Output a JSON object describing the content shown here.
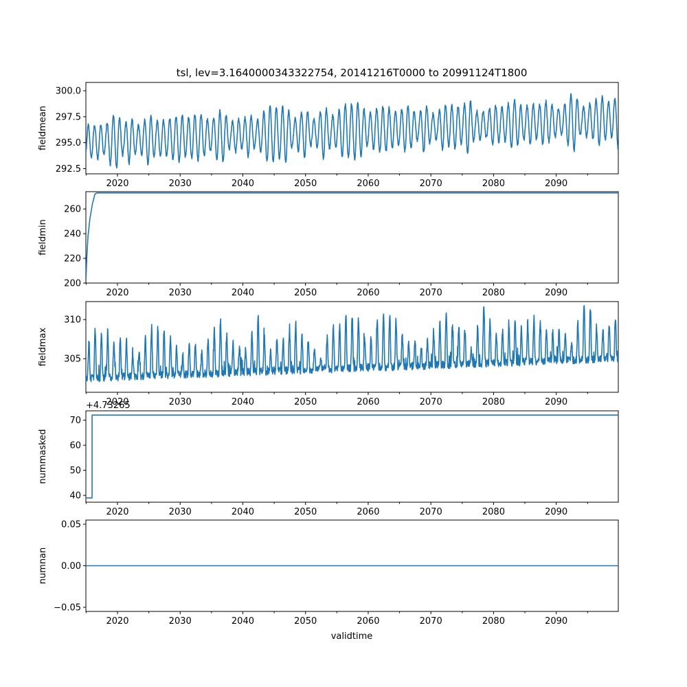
{
  "figure": {
    "title": "tsl, lev=3.1640000343322754, 20141216T0000 to 20991124T1800",
    "xlabel": "validtime",
    "line_color": "#1f77b4"
  },
  "chart_data": [
    {
      "type": "line",
      "name": "fieldmean",
      "ylabel": "fieldmean",
      "xlim": [
        2014.96,
        2099.9
      ],
      "ylim": [
        292.0,
        300.8
      ],
      "x_ticks": [
        2020,
        2030,
        2040,
        2050,
        2060,
        2070,
        2080,
        2090
      ],
      "y_ticks": [
        292.5,
        295.0,
        297.5,
        300.0
      ],
      "y_tick_labels": [
        "292.5",
        "295.0",
        "297.5",
        "300.0"
      ],
      "offset_text": "",
      "model": "seasonal",
      "base": 295.1,
      "trend_per_decade": 0.25,
      "amplitude": 2.0,
      "amplitude_jitter": 0.9,
      "seed": 11
    },
    {
      "type": "line",
      "name": "fieldmin",
      "ylabel": "fieldmin",
      "xlim": [
        2014.96,
        2099.9
      ],
      "ylim": [
        200,
        274
      ],
      "x_ticks": [
        2020,
        2030,
        2040,
        2050,
        2060,
        2070,
        2080,
        2090
      ],
      "y_ticks": [
        200,
        220,
        240,
        260
      ],
      "y_tick_labels": [
        "200",
        "220",
        "240",
        "260"
      ],
      "offset_text": "",
      "model": "ramp",
      "points": [
        [
          2014.96,
          201
        ],
        [
          2015.1,
          220
        ],
        [
          2015.3,
          238
        ],
        [
          2015.6,
          252
        ],
        [
          2016.0,
          264
        ],
        [
          2016.4,
          272
        ],
        [
          2016.7,
          273
        ],
        [
          2099.9,
          273
        ]
      ]
    },
    {
      "type": "line",
      "name": "fieldmax",
      "ylabel": "fieldmax",
      "xlim": [
        2014.96,
        2099.9
      ],
      "ylim": [
        300.7,
        312.3
      ],
      "x_ticks": [
        2020,
        2030,
        2040,
        2050,
        2060,
        2070,
        2080,
        2090
      ],
      "y_ticks": [
        305,
        310
      ],
      "y_tick_labels": [
        "305",
        "310"
      ],
      "offset_text": "",
      "model": "spiky",
      "base": 302.5,
      "trend_per_decade": 0.3,
      "amplitude": 4.5,
      "amplitude_jitter": 3.0,
      "seed": 29
    },
    {
      "type": "line",
      "name": "nummasked",
      "ylabel": "nummasked",
      "xlim": [
        2014.96,
        2099.9
      ],
      "ylim": [
        37.3,
        73.7
      ],
      "x_ticks": [
        2020,
        2030,
        2040,
        2050,
        2060,
        2070,
        2080,
        2090
      ],
      "y_ticks": [
        40,
        50,
        60,
        70
      ],
      "y_tick_labels": [
        "40",
        "50",
        "60",
        "70"
      ],
      "offset_text": "+4.73265",
      "model": "step",
      "points": [
        [
          2014.96,
          39
        ],
        [
          2015.95,
          39
        ],
        [
          2015.95,
          72
        ],
        [
          2099.9,
          72
        ]
      ]
    },
    {
      "type": "line",
      "name": "numnan",
      "ylabel": "numnan",
      "xlim": [
        2014.96,
        2099.9
      ],
      "ylim": [
        -0.055,
        0.055
      ],
      "x_ticks": [
        2020,
        2030,
        2040,
        2050,
        2060,
        2070,
        2080,
        2090
      ],
      "y_ticks": [
        -0.05,
        0.0,
        0.05
      ],
      "y_tick_labels": [
        "−0.05",
        "0.00",
        "0.05"
      ],
      "offset_text": "",
      "model": "flat",
      "points": [
        [
          2014.96,
          0
        ],
        [
          2099.9,
          0
        ]
      ]
    }
  ],
  "x_tick_labels": [
    "2020",
    "2030",
    "2040",
    "2050",
    "2060",
    "2070",
    "2080",
    "2090"
  ]
}
